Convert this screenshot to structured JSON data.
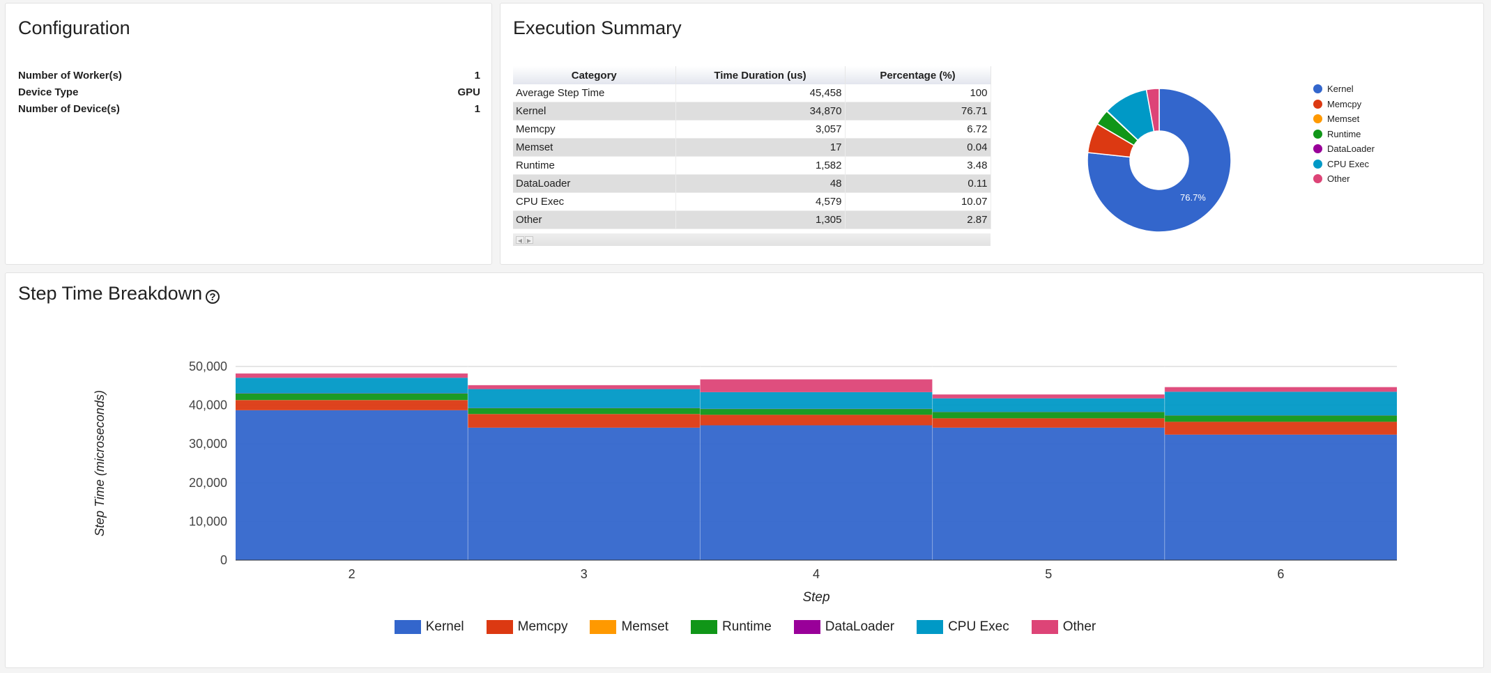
{
  "configuration": {
    "title": "Configuration",
    "rows": [
      {
        "label": "Number of Worker(s)",
        "value": "1"
      },
      {
        "label": "Device Type",
        "value": "GPU"
      },
      {
        "label": "Number of Device(s)",
        "value": "1"
      }
    ]
  },
  "execution_summary": {
    "title": "Execution Summary",
    "columns": [
      "Category",
      "Time Duration (us)",
      "Percentage (%)"
    ],
    "rows": [
      [
        "Average Step Time",
        "45,458",
        "100"
      ],
      [
        "Kernel",
        "34,870",
        "76.71"
      ],
      [
        "Memcpy",
        "3,057",
        "6.72"
      ],
      [
        "Memset",
        "17",
        "0.04"
      ],
      [
        "Runtime",
        "1,582",
        "3.48"
      ],
      [
        "DataLoader",
        "48",
        "0.11"
      ],
      [
        "CPU Exec",
        "4,579",
        "10.07"
      ],
      [
        "Other",
        "1,305",
        "2.87"
      ]
    ],
    "scroll_left_icon": "arrow-left",
    "scroll_right_icon": "arrow-right"
  },
  "colors": {
    "Kernel": "#3366cc",
    "Memcpy": "#dc3912",
    "Memset": "#ff9900",
    "Runtime": "#109618",
    "DataLoader": "#990099",
    "CPU Exec": "#0099c6",
    "Other": "#dd4477"
  },
  "step_breakdown": {
    "title": "Step Time Breakdown",
    "help_icon": "?"
  },
  "chart_data": [
    {
      "type": "pie",
      "donut": true,
      "labels": [
        "Kernel",
        "Memcpy",
        "Memset",
        "Runtime",
        "DataLoader",
        "CPU Exec",
        "Other"
      ],
      "values": [
        76.71,
        6.72,
        0.04,
        3.48,
        0.11,
        10.07,
        2.87
      ],
      "slice_label": "76.7%",
      "legend_placement": "right"
    },
    {
      "type": "area",
      "stacked": true,
      "stepped": true,
      "x": [
        2,
        3,
        4,
        5,
        6
      ],
      "xlabel": "Step",
      "ylabel": "Step Time (microseconds)",
      "ylim": [
        0,
        50000
      ],
      "yticks": [
        "0",
        "10,000",
        "20,000",
        "30,000",
        "40,000",
        "50,000"
      ],
      "grid": true,
      "legend_placement": "bottom",
      "series": [
        {
          "name": "Kernel",
          "values": [
            38700,
            34200,
            34800,
            34200,
            32400
          ]
        },
        {
          "name": "Memcpy",
          "values": [
            2600,
            3500,
            2700,
            2400,
            3300
          ]
        },
        {
          "name": "Memset",
          "values": [
            30,
            20,
            20,
            20,
            20
          ]
        },
        {
          "name": "Runtime",
          "values": [
            1700,
            1500,
            1500,
            1600,
            1600
          ]
        },
        {
          "name": "DataLoader",
          "values": [
            50,
            50,
            50,
            50,
            50
          ]
        },
        {
          "name": "CPU Exec",
          "values": [
            4000,
            4900,
            4300,
            3500,
            6100
          ]
        },
        {
          "name": "Other",
          "values": [
            1100,
            1000,
            3300,
            1000,
            1200
          ]
        }
      ]
    }
  ]
}
